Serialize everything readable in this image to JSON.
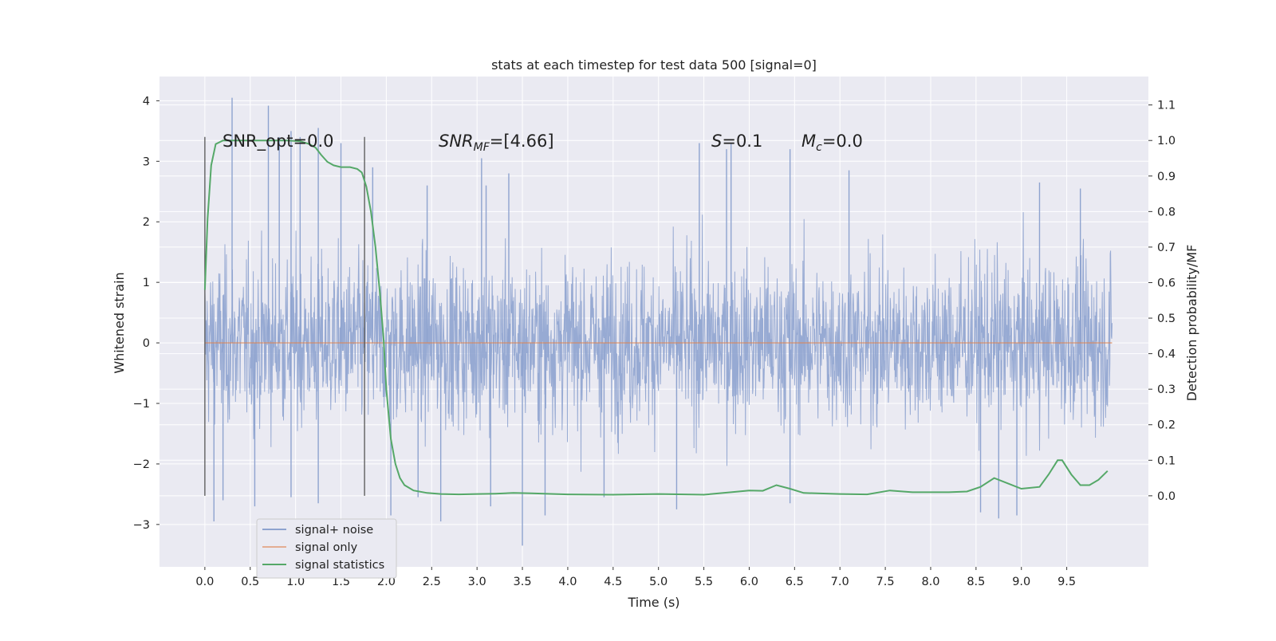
{
  "chart_data": {
    "type": "line",
    "title": "stats at each timestep for test data 500 [signal=0]",
    "xlabel": "Time (s)",
    "ylabel": "Whitened strain",
    "y2label": "Detection probability/MF",
    "xlim": [
      -0.5,
      10.4
    ],
    "ylim": [
      -3.7,
      4.4
    ],
    "y2lim": [
      -0.2,
      1.18
    ],
    "grid": true,
    "legend_position": "lower-left",
    "x_ticks": [
      "0.0",
      "0.5",
      "1.0",
      "1.5",
      "2.0",
      "2.5",
      "3.0",
      "3.5",
      "4.0",
      "4.5",
      "5.0",
      "5.5",
      "6.0",
      "6.5",
      "7.0",
      "7.5",
      "8.0",
      "8.5",
      "9.0",
      "9.5"
    ],
    "y_ticks": [
      "−3",
      "−2",
      "−1",
      "0",
      "1",
      "2",
      "3",
      "4"
    ],
    "y2_ticks": [
      "0.0",
      "0.1",
      "0.2",
      "0.3",
      "0.4",
      "0.5",
      "0.6",
      "0.7",
      "0.8",
      "0.9",
      "1.0",
      "1.1"
    ],
    "y_tick_values": [
      -3,
      -2,
      -1,
      0,
      1,
      2,
      3,
      4
    ],
    "y2_tick_values": [
      0,
      0.1,
      0.2,
      0.3,
      0.4,
      0.5,
      0.6,
      0.7,
      0.8,
      0.9,
      1.0,
      1.1
    ],
    "annotations": {
      "snr_opt": "SNR_opt=0.0",
      "snr_mf_main": "SNR",
      "snr_mf_sub": "MF",
      "snr_mf_val": "=[4.66]",
      "s_main": "S",
      "s_val": "=0.1",
      "mc_main": "M",
      "mc_sub": "c",
      "mc_val": "=0.0"
    },
    "vertical_markers": [
      0.0,
      1.76
    ],
    "series": [
      {
        "name": "signal+ noise",
        "color": "#8ea3cf",
        "x_range": [
          0.0,
          10.0
        ],
        "spikes_high": [
          [
            0.3,
            4.05
          ],
          [
            0.7,
            3.92
          ],
          [
            0.82,
            3.4
          ],
          [
            0.95,
            3.5
          ],
          [
            1.05,
            3.4
          ],
          [
            1.25,
            3.55
          ],
          [
            1.5,
            3.3
          ],
          [
            1.85,
            2.9
          ],
          [
            2.45,
            2.6
          ],
          [
            3.05,
            3.05
          ],
          [
            3.1,
            2.6
          ],
          [
            3.35,
            2.8
          ],
          [
            5.45,
            3.3
          ],
          [
            5.75,
            3.2
          ],
          [
            5.8,
            3.3
          ],
          [
            6.45,
            3.2
          ],
          [
            7.1,
            2.85
          ],
          [
            9.2,
            2.65
          ],
          [
            9.65,
            2.55
          ]
        ],
        "spikes_low": [
          [
            0.1,
            -2.95
          ],
          [
            0.2,
            -2.6
          ],
          [
            0.55,
            -2.7
          ],
          [
            0.95,
            -2.55
          ],
          [
            1.25,
            -2.65
          ],
          [
            2.05,
            -2.85
          ],
          [
            2.35,
            -2.55
          ],
          [
            2.6,
            -2.95
          ],
          [
            3.15,
            -2.7
          ],
          [
            3.5,
            -3.35
          ],
          [
            3.75,
            -2.85
          ],
          [
            4.4,
            -2.55
          ],
          [
            5.2,
            -2.75
          ],
          [
            6.45,
            -2.65
          ],
          [
            8.55,
            -2.8
          ],
          [
            8.75,
            -2.9
          ],
          [
            8.95,
            -2.85
          ]
        ]
      },
      {
        "name": "signal only",
        "color": "#dd8452",
        "x": [
          0.0,
          10.0
        ],
        "y": [
          0.0,
          0.0
        ]
      },
      {
        "name": "signal statistics",
        "color": "#55a868",
        "axis": "right",
        "x": [
          0.0,
          0.03,
          0.07,
          0.12,
          0.2,
          0.3,
          0.5,
          0.7,
          0.9,
          1.05,
          1.15,
          1.22,
          1.28,
          1.35,
          1.42,
          1.5,
          1.6,
          1.68,
          1.73,
          1.78,
          1.83,
          1.88,
          1.93,
          1.97,
          2.0,
          2.05,
          2.1,
          2.15,
          2.2,
          2.3,
          2.45,
          2.6,
          2.8,
          3.0,
          3.2,
          3.4,
          3.6,
          4.0,
          4.5,
          5.0,
          5.5,
          5.8,
          6.0,
          6.15,
          6.3,
          6.45,
          6.6,
          7.0,
          7.3,
          7.55,
          7.8,
          8.2,
          8.4,
          8.55,
          8.7,
          8.85,
          9.0,
          9.2,
          9.3,
          9.4,
          9.45,
          9.55,
          9.65,
          9.75,
          9.85,
          9.95
        ],
        "y": [
          0.58,
          0.78,
          0.93,
          0.99,
          1.0,
          1.0,
          1.0,
          1.0,
          1.0,
          0.998,
          0.99,
          0.98,
          0.96,
          0.94,
          0.93,
          0.925,
          0.925,
          0.92,
          0.91,
          0.87,
          0.8,
          0.7,
          0.57,
          0.44,
          0.3,
          0.16,
          0.09,
          0.05,
          0.03,
          0.015,
          0.008,
          0.005,
          0.004,
          0.005,
          0.006,
          0.008,
          0.007,
          0.004,
          0.003,
          0.005,
          0.003,
          0.01,
          0.015,
          0.014,
          0.03,
          0.02,
          0.008,
          0.005,
          0.004,
          0.015,
          0.01,
          0.01,
          0.012,
          0.025,
          0.05,
          0.035,
          0.02,
          0.025,
          0.06,
          0.1,
          0.1,
          0.06,
          0.03,
          0.03,
          0.045,
          0.07
        ]
      }
    ]
  }
}
